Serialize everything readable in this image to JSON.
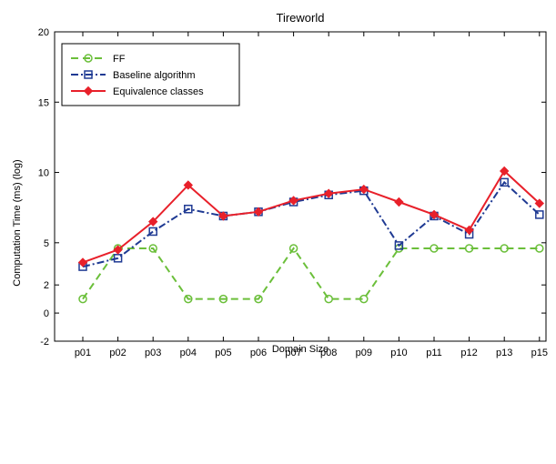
{
  "chart_data": {
    "type": "line",
    "title": "Tireworld",
    "xlabel": "Domain Size",
    "ylabel": "Computation Time (ms) (log)",
    "categories": [
      "p01",
      "p02",
      "p03",
      "p04",
      "p05",
      "p06",
      "p07",
      "p08",
      "p09",
      "p10",
      "p11",
      "p12",
      "p13",
      "p15"
    ],
    "ylim": [
      -2,
      20
    ],
    "yticks": [
      -2,
      0,
      2,
      5,
      10,
      15,
      20
    ],
    "grid": false,
    "legend_position": "top-left",
    "series": [
      {
        "name": "FF",
        "color": "#6bbf3a",
        "line_style": "dashed",
        "marker": "circle",
        "values": [
          1,
          4.6,
          4.6,
          1,
          1,
          1,
          4.6,
          1,
          1,
          4.6,
          4.6,
          4.6,
          4.6,
          4.6
        ]
      },
      {
        "name": "Baseline algorithm",
        "color": "#1f3a93",
        "line_style": "dashdot",
        "marker": "square",
        "values": [
          3.3,
          3.9,
          5.8,
          7.4,
          6.9,
          7.2,
          7.9,
          8.4,
          8.7,
          4.8,
          6.9,
          5.6,
          9.3,
          7.0
        ]
      },
      {
        "name": "Equivalence classes",
        "color": "#e8202a",
        "line_style": "solid",
        "marker": "diamond",
        "values": [
          3.6,
          4.5,
          6.5,
          9.1,
          6.9,
          7.2,
          8.0,
          8.5,
          8.8,
          7.9,
          7.0,
          5.9,
          10.1,
          7.8
        ]
      }
    ]
  }
}
